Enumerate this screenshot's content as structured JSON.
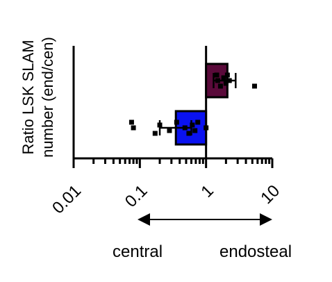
{
  "chart_data": {
    "type": "bar",
    "orientation": "horizontal",
    "x_scale": "log",
    "xlim": [
      0.01,
      10
    ],
    "x_ticks": [
      {
        "value": 0.01,
        "label": "0.01"
      },
      {
        "value": 0.1,
        "label": "0.1"
      },
      {
        "value": 1,
        "label": "1"
      },
      {
        "value": 10,
        "label": "10"
      }
    ],
    "ylabel_lines": [
      "Ratio LSK SLAM",
      "number (end/cen)"
    ],
    "grid": false,
    "series": [
      {
        "color": "#0a12f0",
        "value": 0.35,
        "error": [
          0.2,
          0.6
        ],
        "points": [
          0.075,
          0.08,
          0.17,
          0.2,
          0.28,
          0.36,
          0.48,
          0.55,
          0.62,
          0.68,
          0.75,
          1.0
        ]
      },
      {
        "color": "#5a0a3a",
        "value": 2.1,
        "error": [
          1.3,
          2.8
        ],
        "points": [
          1.45,
          1.5,
          1.65,
          1.85,
          2.0,
          2.1,
          2.25,
          5.4
        ]
      }
    ],
    "direction_labels": {
      "left": "central",
      "right": "endosteal"
    }
  }
}
